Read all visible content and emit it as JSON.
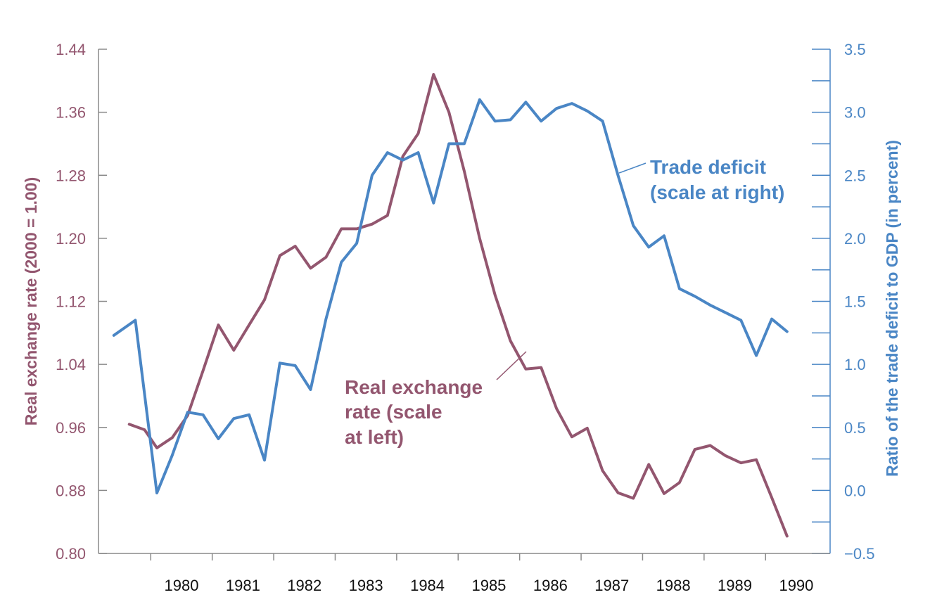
{
  "chart_data": {
    "type": "line",
    "x_unit": "year",
    "xlim": [
      1979.15,
      1991.05
    ],
    "x_ticks": [
      1980,
      1981,
      1982,
      1983,
      1984,
      1985,
      1986,
      1987,
      1988,
      1989,
      1990
    ],
    "x_tick_labels": [
      "1980",
      "1981",
      "1982",
      "1983",
      "1984",
      "1985",
      "1986",
      "1987",
      "1988",
      "1989",
      "1990"
    ],
    "y_left": {
      "label": "Real exchange rate (2000 = 1.00)",
      "ylim": [
        0.8,
        1.44
      ],
      "ticks": [
        "1.44",
        "1.36",
        "1.28",
        "1.20",
        "1.12",
        "1.04",
        "0.96",
        "0.88",
        "0.80"
      ],
      "tick_values": [
        1.44,
        1.36,
        1.28,
        1.2,
        1.12,
        1.04,
        0.96,
        0.88,
        0.8
      ],
      "color": "#93566f"
    },
    "y_right": {
      "label": "Ratio of the trade deficit to GDP (in percent)",
      "ylim": [
        -0.5,
        3.5
      ],
      "ticks": [
        "3.5",
        "3.0",
        "2.5",
        "2.0",
        "1.5",
        "1.0",
        "0.5",
        "0.0",
        "−0.5"
      ],
      "tick_values": [
        3.5,
        3.0,
        2.5,
        2.0,
        1.5,
        1.0,
        0.5,
        0.0,
        -0.5
      ],
      "minor_ticks": [
        3.25,
        2.75,
        2.25,
        1.75,
        1.25,
        0.75,
        0.25,
        -0.25
      ],
      "color": "#4a86c5"
    },
    "series": [
      {
        "id": "exchange",
        "axis": "left",
        "color": "#93566f",
        "x": [
          1979.65,
          1979.9,
          1980.1,
          1980.35,
          1980.6,
          1980.85,
          1981.1,
          1981.35,
          1981.6,
          1981.85,
          1982.1,
          1982.35,
          1982.6,
          1982.85,
          1983.1,
          1983.35,
          1983.6,
          1983.85,
          1984.1,
          1984.35,
          1984.6,
          1984.85,
          1985.1,
          1985.35,
          1985.6,
          1985.85,
          1986.1,
          1986.35,
          1986.6,
          1986.85,
          1987.1,
          1987.35,
          1987.6,
          1987.85,
          1988.1,
          1988.35,
          1988.6,
          1988.85,
          1989.1,
          1989.35,
          1989.6,
          1989.85,
          1990.1,
          1990.35
        ],
        "values": [
          0.964,
          0.957,
          0.934,
          0.947,
          0.975,
          1.032,
          1.09,
          1.058,
          1.09,
          1.122,
          1.178,
          1.19,
          1.162,
          1.176,
          1.212,
          1.212,
          1.218,
          1.229,
          1.304,
          1.333,
          1.408,
          1.36,
          1.285,
          1.2,
          1.128,
          1.07,
          1.034,
          1.036,
          0.984,
          0.948,
          0.959,
          0.905,
          0.877,
          0.87,
          0.913,
          0.876,
          0.89,
          0.932,
          0.937,
          0.924,
          0.915,
          0.919,
          0.871,
          0.822
        ]
      },
      {
        "id": "trade",
        "axis": "right",
        "color": "#4a86c5",
        "x": [
          1979.4,
          1979.75,
          1980.1,
          1980.35,
          1980.6,
          1980.85,
          1981.1,
          1981.35,
          1981.6,
          1981.85,
          1982.1,
          1982.35,
          1982.6,
          1982.85,
          1983.1,
          1983.35,
          1983.6,
          1983.85,
          1984.1,
          1984.35,
          1984.6,
          1984.85,
          1985.1,
          1985.35,
          1985.6,
          1985.85,
          1986.1,
          1986.35,
          1986.6,
          1986.85,
          1987.1,
          1987.35,
          1987.6,
          1987.85,
          1988.1,
          1988.35,
          1988.6,
          1988.85,
          1989.1,
          1989.35,
          1989.6,
          1989.85,
          1990.1,
          1990.35
        ],
        "values": [
          1.23,
          1.35,
          -0.02,
          0.28,
          0.62,
          0.6,
          0.41,
          0.57,
          0.6,
          0.24,
          1.01,
          0.99,
          0.8,
          1.36,
          1.81,
          1.96,
          2.5,
          2.68,
          2.62,
          2.68,
          2.28,
          2.75,
          2.75,
          3.1,
          2.93,
          2.94,
          3.08,
          2.93,
          3.03,
          3.07,
          3.01,
          2.93,
          2.5,
          2.1,
          1.93,
          2.02,
          1.6,
          1.54,
          1.47,
          1.41,
          1.35,
          1.07,
          1.36,
          1.26
        ]
      }
    ],
    "annotations": [
      {
        "target": "exchange",
        "lines": [
          "Real exchange",
          "rate (scale",
          "at left)"
        ]
      },
      {
        "target": "trade",
        "lines": [
          "Trade deficit",
          "(scale at right)"
        ]
      }
    ],
    "grid": false,
    "legend": "none"
  }
}
